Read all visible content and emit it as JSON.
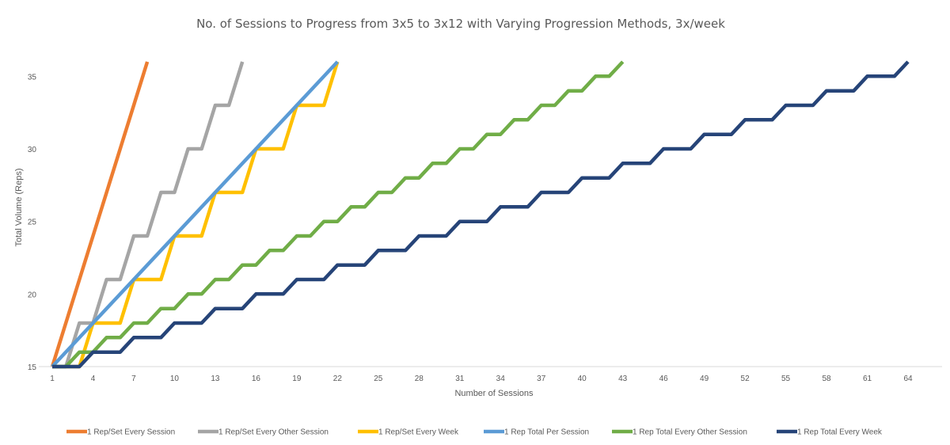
{
  "chart_data": {
    "type": "line",
    "title": "No. of Sessions to Progress from 3x5 to 3x12 with Varying Progression Methods, 3x/week",
    "xlabel": "Number of Sessions",
    "ylabel": "Total Volume (Reps)",
    "xlim": [
      1,
      64
    ],
    "ylim": [
      15,
      36
    ],
    "x_ticks": [
      "1",
      "4",
      "7",
      "10",
      "13",
      "16",
      "19",
      "22",
      "25",
      "28",
      "31",
      "34",
      "37",
      "40",
      "43",
      "46",
      "49",
      "52",
      "55",
      "58",
      "61",
      "64"
    ],
    "y_ticks": [
      "15",
      "20",
      "25",
      "30",
      "35"
    ],
    "grid": false,
    "legend_position": "bottom",
    "series": [
      {
        "name": "1 Rep/Set Every Session",
        "color": "#ED7D31",
        "points": [
          [
            1,
            15
          ],
          [
            8,
            36
          ]
        ]
      },
      {
        "name": "1 Rep/Set Every Other Session",
        "color": "#A5A5A5",
        "points": [
          [
            1,
            15
          ],
          [
            2,
            15
          ],
          [
            3,
            18
          ],
          [
            4,
            18
          ],
          [
            5,
            21
          ],
          [
            6,
            21
          ],
          [
            7,
            24
          ],
          [
            8,
            24
          ],
          [
            9,
            27
          ],
          [
            10,
            27
          ],
          [
            11,
            30
          ],
          [
            12,
            30
          ],
          [
            13,
            33
          ],
          [
            14,
            33
          ],
          [
            15,
            36
          ]
        ]
      },
      {
        "name": "1 Rep/Set Every Week",
        "color": "#FFC000",
        "points": [
          [
            1,
            15
          ],
          [
            2,
            15
          ],
          [
            3,
            15
          ],
          [
            4,
            18
          ],
          [
            5,
            18
          ],
          [
            6,
            18
          ],
          [
            7,
            21
          ],
          [
            8,
            21
          ],
          [
            9,
            21
          ],
          [
            10,
            24
          ],
          [
            11,
            24
          ],
          [
            12,
            24
          ],
          [
            13,
            27
          ],
          [
            14,
            27
          ],
          [
            15,
            27
          ],
          [
            16,
            30
          ],
          [
            17,
            30
          ],
          [
            18,
            30
          ],
          [
            19,
            33
          ],
          [
            20,
            33
          ],
          [
            21,
            33
          ],
          [
            22,
            36
          ]
        ]
      },
      {
        "name": "1 Rep Total Per Session",
        "color": "#5B9BD5",
        "points": [
          [
            1,
            15
          ],
          [
            22,
            36
          ]
        ]
      },
      {
        "name": "1 Rep Total Every Other Session",
        "color": "#70AD47",
        "points": [
          [
            1,
            15
          ],
          [
            2,
            15
          ],
          [
            3,
            16
          ],
          [
            4,
            16
          ],
          [
            5,
            17
          ],
          [
            6,
            17
          ],
          [
            7,
            18
          ],
          [
            8,
            18
          ],
          [
            9,
            19
          ],
          [
            10,
            19
          ],
          [
            11,
            20
          ],
          [
            12,
            20
          ],
          [
            13,
            21
          ],
          [
            14,
            21
          ],
          [
            15,
            22
          ],
          [
            16,
            22
          ],
          [
            17,
            23
          ],
          [
            18,
            23
          ],
          [
            19,
            24
          ],
          [
            20,
            24
          ],
          [
            21,
            25
          ],
          [
            22,
            25
          ],
          [
            23,
            26
          ],
          [
            24,
            26
          ],
          [
            25,
            27
          ],
          [
            26,
            27
          ],
          [
            27,
            28
          ],
          [
            28,
            28
          ],
          [
            29,
            29
          ],
          [
            30,
            29
          ],
          [
            31,
            30
          ],
          [
            32,
            30
          ],
          [
            33,
            31
          ],
          [
            34,
            31
          ],
          [
            35,
            32
          ],
          [
            36,
            32
          ],
          [
            37,
            33
          ],
          [
            38,
            33
          ],
          [
            39,
            34
          ],
          [
            40,
            34
          ],
          [
            41,
            35
          ],
          [
            42,
            35
          ],
          [
            43,
            36
          ]
        ]
      },
      {
        "name": "1 Rep Total Every Week",
        "color": "#264478",
        "points": [
          [
            1,
            15
          ],
          [
            2,
            15
          ],
          [
            3,
            15
          ],
          [
            4,
            16
          ],
          [
            5,
            16
          ],
          [
            6,
            16
          ],
          [
            7,
            17
          ],
          [
            8,
            17
          ],
          [
            9,
            17
          ],
          [
            10,
            18
          ],
          [
            11,
            18
          ],
          [
            12,
            18
          ],
          [
            13,
            19
          ],
          [
            14,
            19
          ],
          [
            15,
            19
          ],
          [
            16,
            20
          ],
          [
            17,
            20
          ],
          [
            18,
            20
          ],
          [
            19,
            21
          ],
          [
            20,
            21
          ],
          [
            21,
            21
          ],
          [
            22,
            22
          ],
          [
            23,
            22
          ],
          [
            24,
            22
          ],
          [
            25,
            23
          ],
          [
            26,
            23
          ],
          [
            27,
            23
          ],
          [
            28,
            24
          ],
          [
            29,
            24
          ],
          [
            30,
            24
          ],
          [
            31,
            25
          ],
          [
            32,
            25
          ],
          [
            33,
            25
          ],
          [
            34,
            26
          ],
          [
            35,
            26
          ],
          [
            36,
            26
          ],
          [
            37,
            27
          ],
          [
            38,
            27
          ],
          [
            39,
            27
          ],
          [
            40,
            28
          ],
          [
            41,
            28
          ],
          [
            42,
            28
          ],
          [
            43,
            29
          ],
          [
            44,
            29
          ],
          [
            45,
            29
          ],
          [
            46,
            30
          ],
          [
            47,
            30
          ],
          [
            48,
            30
          ],
          [
            49,
            31
          ],
          [
            50,
            31
          ],
          [
            51,
            31
          ],
          [
            52,
            32
          ],
          [
            53,
            32
          ],
          [
            54,
            32
          ],
          [
            55,
            33
          ],
          [
            56,
            33
          ],
          [
            57,
            33
          ],
          [
            58,
            34
          ],
          [
            59,
            34
          ],
          [
            60,
            34
          ],
          [
            61,
            35
          ],
          [
            62,
            35
          ],
          [
            63,
            35
          ],
          [
            64,
            36
          ]
        ]
      }
    ]
  }
}
